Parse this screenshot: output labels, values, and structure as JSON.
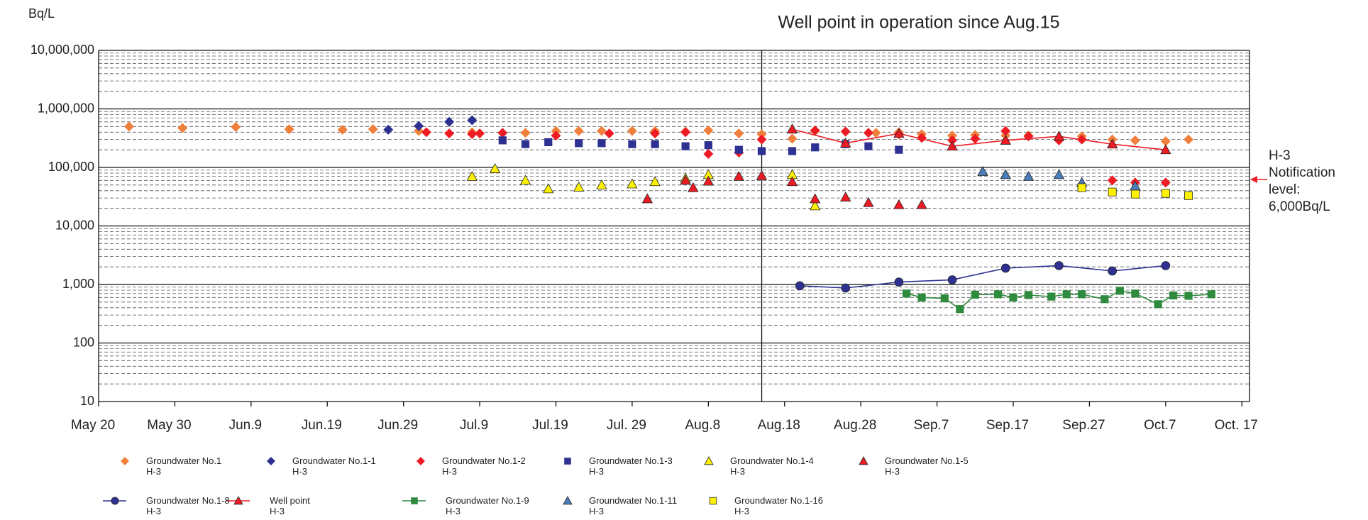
{
  "chart_data": {
    "type": "scatter",
    "y_unit": "Bq/L",
    "annotation": "Well point in operation since Aug.15",
    "reference_line": "08-15",
    "side_note": "H-3\nNotification\nlevel:\n6,000Bq/L",
    "log_scale": true,
    "grid": true,
    "xlim": [
      "05-20",
      "10-18"
    ],
    "xticks": [
      {
        "value": "05-20",
        "label": "May 20"
      },
      {
        "value": "05-30",
        "label": "May 30"
      },
      {
        "value": "06-09",
        "label": "Jun.9"
      },
      {
        "value": "06-19",
        "label": "Jun.19"
      },
      {
        "value": "06-29",
        "label": "Jun.29"
      },
      {
        "value": "07-09",
        "label": "Jul.9"
      },
      {
        "value": "07-19",
        "label": "Jul.19"
      },
      {
        "value": "07-29",
        "label": "Jul. 29"
      },
      {
        "value": "08-08",
        "label": "Aug.8"
      },
      {
        "value": "08-18",
        "label": "Aug.18"
      },
      {
        "value": "08-28",
        "label": "Aug.28"
      },
      {
        "value": "09-07",
        "label": "Sep.7"
      },
      {
        "value": "09-17",
        "label": "Sep.17"
      },
      {
        "value": "09-27",
        "label": "Sep.27"
      },
      {
        "value": "10-07",
        "label": "Oct.7"
      },
      {
        "value": "10-17",
        "label": "Oct. 17"
      }
    ],
    "ylim": [
      10,
      10000000
    ],
    "yticks": [
      10,
      100,
      {
        "value": 1000,
        "label": "1,000"
      },
      {
        "value": 10000,
        "label": "10,000"
      },
      {
        "value": 100000,
        "label": "100,000"
      },
      {
        "value": 1000000,
        "label": "1,000,000"
      },
      {
        "value": 10000000,
        "label": "10,000,000"
      }
    ],
    "series": [
      {
        "name": "Groundwater No.1\nH-3",
        "color": "#f07f3c",
        "marker": "diamond",
        "line": false,
        "x": [
          "05-24",
          "05-31",
          "06-07",
          "06-14",
          "06-21",
          "06-25",
          "07-01",
          "07-08",
          "07-15",
          "07-19",
          "07-22",
          "07-25",
          "07-29",
          "08-01",
          "08-05",
          "08-08",
          "08-12",
          "08-15",
          "08-19",
          "08-22",
          "08-26",
          "08-30",
          "09-02",
          "09-05",
          "09-09",
          "09-12",
          "09-16",
          "09-19",
          "09-23",
          "09-26",
          "09-30",
          "10-03",
          "10-07",
          "10-10"
        ],
        "values": [
          500000,
          470000,
          490000,
          450000,
          440000,
          450000,
          420000,
          400000,
          390000,
          420000,
          420000,
          420000,
          420000,
          420000,
          410000,
          430000,
          380000,
          370000,
          310000,
          420000,
          410000,
          390000,
          400000,
          370000,
          350000,
          360000,
          350000,
          350000,
          310000,
          340000,
          300000,
          290000,
          280000,
          300000
        ]
      },
      {
        "name": "Groundwater No.1-1\nH-3",
        "color": "#2e3192",
        "marker": "diamond",
        "line": false,
        "x": [
          "06-27",
          "07-01",
          "07-05",
          "07-08"
        ],
        "values": [
          440000,
          510000,
          600000,
          640000
        ]
      },
      {
        "name": "Groundwater No.1-2\nH-3",
        "color": "#ed1c24",
        "marker": "diamond",
        "line": false,
        "x": [
          "07-02",
          "07-05",
          "07-08",
          "07-09",
          "07-12",
          "07-19",
          "07-26",
          "08-01",
          "08-05",
          "08-08",
          "08-12",
          "08-15",
          "08-22",
          "08-26",
          "08-29",
          "09-02",
          "09-05",
          "09-09",
          "09-12",
          "09-16",
          "09-19",
          "09-23",
          "09-26",
          "09-30",
          "10-03",
          "10-07"
        ],
        "values": [
          400000,
          380000,
          370000,
          380000,
          390000,
          350000,
          380000,
          380000,
          400000,
          170000,
          180000,
          300000,
          430000,
          410000,
          390000,
          370000,
          320000,
          290000,
          310000,
          420000,
          340000,
          290000,
          300000,
          60000,
          55000,
          55000
        ]
      },
      {
        "name": "Groundwater No.1-3\nH-3",
        "color": "#2e3192",
        "marker": "square",
        "line": false,
        "x": [
          "07-12",
          "07-15",
          "07-18",
          "07-22",
          "07-25",
          "07-29",
          "08-01",
          "08-05",
          "08-08",
          "08-12",
          "08-15",
          "08-19",
          "08-22",
          "08-26",
          "08-29",
          "09-02"
        ],
        "values": [
          290000,
          250000,
          270000,
          260000,
          260000,
          250000,
          250000,
          230000,
          240000,
          200000,
          190000,
          190000,
          220000,
          250000,
          230000,
          200000
        ]
      },
      {
        "name": "Groundwater No.1-4\nH-3",
        "color": "#fff200",
        "marker": "triangle",
        "line": false,
        "x": [
          "07-08",
          "07-11",
          "07-15",
          "07-18",
          "07-22",
          "07-25",
          "07-29",
          "08-01",
          "08-05",
          "08-08",
          "08-19",
          "08-22"
        ],
        "values": [
          70000,
          95000,
          60000,
          43000,
          46000,
          50000,
          52000,
          57000,
          65000,
          75000,
          75000,
          22000
        ]
      },
      {
        "name": "Groundwater No.1-5\nH-3",
        "color": "#ed1c24",
        "marker": "triangle",
        "line": false,
        "x": [
          "07-31",
          "08-05",
          "08-06",
          "08-08",
          "08-12",
          "08-15",
          "08-19",
          "08-22",
          "08-26",
          "08-29",
          "09-02",
          "09-05"
        ],
        "values": [
          29000,
          60000,
          45000,
          58000,
          70000,
          72000,
          57000,
          29000,
          31000,
          25000,
          23000,
          23000
        ]
      },
      {
        "name": "Groundwater No.1-8\nH-3",
        "color": "#2e3192",
        "marker": "circle",
        "line": true,
        "x": [
          "08-20",
          "08-26",
          "09-02",
          "09-09",
          "09-16",
          "09-23",
          "09-30",
          "10-07"
        ],
        "values": [
          950,
          870,
          1100,
          1200,
          1900,
          2100,
          1700,
          2100
        ]
      },
      {
        "name": "Well point\nH-3",
        "color": "#ed1c24",
        "marker": "triangle",
        "line": true,
        "x": [
          "08-19",
          "08-26",
          "09-02",
          "09-09",
          "09-16",
          "09-23",
          "09-30",
          "10-07"
        ],
        "values": [
          450000,
          260000,
          380000,
          230000,
          290000,
          340000,
          250000,
          200000
        ]
      },
      {
        "name": "Groundwater No.1-9\nH-3",
        "color": "#2e8b3e",
        "marker": "square",
        "line": true,
        "x": [
          "09-03",
          "09-05",
          "09-08",
          "09-10",
          "09-12",
          "09-15",
          "09-17",
          "09-19",
          "09-22",
          "09-24",
          "09-26",
          "09-29",
          "10-01",
          "10-03",
          "10-06",
          "10-08",
          "10-10",
          "10-13"
        ],
        "values": [
          700,
          600,
          580,
          380,
          670,
          680,
          600,
          660,
          620,
          680,
          680,
          560,
          780,
          700,
          460,
          650,
          640,
          680
        ]
      },
      {
        "name": "Groundwater No.1-11\nH-3",
        "color": "#4a7ebb",
        "marker": "triangle",
        "line": false,
        "x": [
          "09-13",
          "09-16",
          "09-19",
          "09-23",
          "09-26",
          "10-03"
        ],
        "values": [
          85000,
          75000,
          70000,
          75000,
          55000,
          48000
        ]
      },
      {
        "name": "Groundwater No.1-16\nH-3",
        "color": "#fff200",
        "marker": "square",
        "line": false,
        "x": [
          "09-26",
          "09-30",
          "10-03",
          "10-07",
          "10-10"
        ],
        "values": [
          45000,
          38000,
          35000,
          36000,
          33000
        ]
      }
    ]
  }
}
